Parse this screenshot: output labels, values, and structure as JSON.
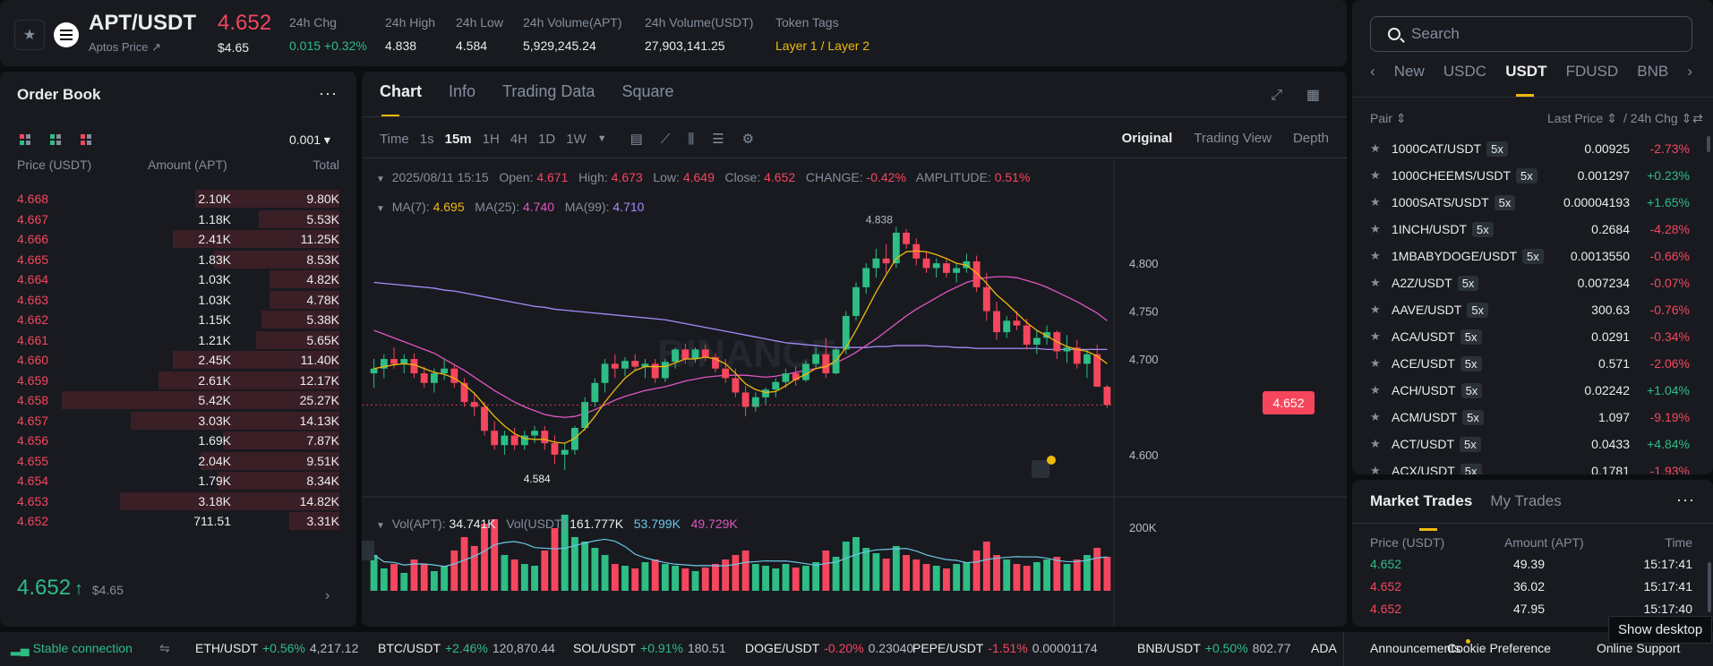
{
  "header": {
    "symbol": "APT/USDT",
    "subname": "Aptos Price ↗",
    "last_price": "4.652",
    "last_price_usd": "$4.65",
    "stats": [
      {
        "label": "24h Chg",
        "value": "0.015 +0.32%",
        "color": "#2ebd85"
      },
      {
        "label": "24h High",
        "value": "4.838",
        "color": "#eaecef"
      },
      {
        "label": "24h Low",
        "value": "4.584",
        "color": "#eaecef"
      },
      {
        "label": "24h Volume(APT)",
        "value": "5,929,245.24",
        "color": "#eaecef"
      },
      {
        "label": "24h Volume(USDT)",
        "value": "27,903,141.25",
        "color": "#eaecef"
      },
      {
        "label": "Token Tags",
        "value": "Layer 1 / Layer 2",
        "color": "#f0b90b"
      }
    ]
  },
  "orderbook": {
    "title": "Order Book",
    "more": "···",
    "tick": "0.001 ▾",
    "columns": [
      "Price (USDT)",
      "Amount (APT)",
      "Total"
    ],
    "asks": [
      {
        "price": "4.668",
        "amount": "2.10K",
        "total": "9.80K",
        "depth": 0.52
      },
      {
        "price": "4.667",
        "amount": "1.18K",
        "total": "5.53K",
        "depth": 0.29
      },
      {
        "price": "4.666",
        "amount": "2.41K",
        "total": "11.25K",
        "depth": 0.6
      },
      {
        "price": "4.665",
        "amount": "1.83K",
        "total": "8.53K",
        "depth": 0.45
      },
      {
        "price": "4.664",
        "amount": "1.03K",
        "total": "4.82K",
        "depth": 0.25
      },
      {
        "price": "4.663",
        "amount": "1.03K",
        "total": "4.78K",
        "depth": 0.25
      },
      {
        "price": "4.662",
        "amount": "1.15K",
        "total": "5.38K",
        "depth": 0.28
      },
      {
        "price": "4.661",
        "amount": "1.21K",
        "total": "5.65K",
        "depth": 0.3
      },
      {
        "price": "4.660",
        "amount": "2.45K",
        "total": "11.40K",
        "depth": 0.6
      },
      {
        "price": "4.659",
        "amount": "2.61K",
        "total": "12.17K",
        "depth": 0.65
      },
      {
        "price": "4.658",
        "amount": "5.42K",
        "total": "25.27K",
        "depth": 1.0
      },
      {
        "price": "4.657",
        "amount": "3.03K",
        "total": "14.13K",
        "depth": 0.75
      },
      {
        "price": "4.656",
        "amount": "1.69K",
        "total": "7.87K",
        "depth": 0.42
      },
      {
        "price": "4.655",
        "amount": "2.04K",
        "total": "9.51K",
        "depth": 0.5
      },
      {
        "price": "4.654",
        "amount": "1.79K",
        "total": "8.34K",
        "depth": 0.44
      },
      {
        "price": "4.653",
        "amount": "3.18K",
        "total": "14.82K",
        "depth": 0.79
      },
      {
        "price": "4.652",
        "amount": "711.51",
        "total": "3.31K",
        "depth": 0.18
      }
    ],
    "mid_price": "4.652",
    "mid_arrow": "↑",
    "mid_usd": "$4.65"
  },
  "chart": {
    "tabs": [
      "Chart",
      "Info",
      "Trading Data",
      "Square"
    ],
    "intervals": [
      "Time",
      "1s",
      "15m",
      "1H",
      "4H",
      "1D",
      "1W"
    ],
    "active_interval": "15m",
    "views": [
      "Original",
      "Trading View",
      "Depth"
    ],
    "ohlc": {
      "date": "2025/08/11 15:15",
      "open_label": "Open:",
      "open": "4.671",
      "high_label": "High:",
      "high": "4.673",
      "low_label": "Low:",
      "low": "4.649",
      "close_label": "Close:",
      "close": "4.652",
      "change_label": "CHANGE:",
      "change": "-0.42%",
      "amp_label": "AMPLITUDE:",
      "amp": "0.51%"
    },
    "ma": {
      "ma7_label": "MA(7):",
      "ma7": "4.695",
      "ma25_label": "MA(25):",
      "ma25": "4.740",
      "ma99_label": "MA(99):",
      "ma99": "4.710"
    },
    "vol": {
      "apt_label": "Vol(APT):",
      "apt": "34.741K",
      "usdt_label": "Vol(USDT)",
      "usdt": "161.777K",
      "v1": "53.799K",
      "v2": "49.729K"
    },
    "price_tag": "4.652",
    "high_marker": "4.838",
    "low_marker": "4.584",
    "watermark": "BINANCE"
  },
  "chart_data": {
    "type": "candlestick",
    "title": "",
    "y_axis_ticks": [
      "4.800",
      "4.750",
      "4.700",
      "4.600"
    ],
    "vol_axis_ticks": [
      "200K"
    ],
    "ylim": [
      4.57,
      4.86
    ],
    "candles": [
      [
        4.685,
        4.7,
        4.67,
        4.69
      ],
      [
        4.69,
        4.705,
        4.68,
        4.7
      ],
      [
        4.7,
        4.712,
        4.69,
        4.695
      ],
      [
        4.695,
        4.705,
        4.685,
        4.7
      ],
      [
        4.7,
        4.706,
        4.68,
        4.685
      ],
      [
        4.685,
        4.692,
        4.67,
        4.675
      ],
      [
        4.675,
        4.69,
        4.665,
        4.685
      ],
      [
        4.685,
        4.7,
        4.678,
        4.69
      ],
      [
        4.69,
        4.695,
        4.67,
        4.675
      ],
      [
        4.675,
        4.68,
        4.65,
        4.655
      ],
      [
        4.655,
        4.665,
        4.64,
        4.65
      ],
      [
        4.65,
        4.655,
        4.62,
        4.625
      ],
      [
        4.625,
        4.635,
        4.605,
        4.61
      ],
      [
        4.61,
        4.625,
        4.6,
        4.62
      ],
      [
        4.62,
        4.628,
        4.605,
        4.61
      ],
      [
        4.61,
        4.625,
        4.605,
        4.62
      ],
      [
        4.62,
        4.63,
        4.612,
        4.625
      ],
      [
        4.625,
        4.63,
        4.605,
        4.612
      ],
      [
        4.612,
        4.62,
        4.59,
        4.6
      ],
      [
        4.6,
        4.612,
        4.584,
        4.605
      ],
      [
        4.605,
        4.63,
        4.6,
        4.628
      ],
      [
        4.628,
        4.66,
        4.625,
        4.655
      ],
      [
        4.655,
        4.68,
        4.65,
        4.675
      ],
      [
        4.675,
        4.7,
        4.665,
        4.695
      ],
      [
        4.695,
        4.705,
        4.68,
        4.69
      ],
      [
        4.69,
        4.702,
        4.682,
        4.698
      ],
      [
        4.698,
        4.705,
        4.688,
        4.692
      ],
      [
        4.692,
        4.7,
        4.68,
        4.695
      ],
      [
        4.695,
        4.7,
        4.675,
        4.68
      ],
      [
        4.68,
        4.7,
        4.676,
        4.697
      ],
      [
        4.697,
        4.712,
        4.69,
        4.71
      ],
      [
        4.71,
        4.716,
        4.695,
        4.7
      ],
      [
        4.7,
        4.712,
        4.696,
        4.71
      ],
      [
        4.71,
        4.715,
        4.698,
        4.702
      ],
      [
        4.702,
        4.706,
        4.686,
        4.69
      ],
      [
        4.69,
        4.7,
        4.675,
        4.68
      ],
      [
        4.68,
        4.69,
        4.66,
        4.665
      ],
      [
        4.665,
        4.672,
        4.64,
        4.65
      ],
      [
        4.65,
        4.665,
        4.645,
        4.66
      ],
      [
        4.66,
        4.67,
        4.652,
        4.668
      ],
      [
        4.668,
        4.68,
        4.66,
        4.676
      ],
      [
        4.676,
        4.69,
        4.67,
        4.685
      ],
      [
        4.685,
        4.692,
        4.672,
        4.678
      ],
      [
        4.678,
        4.698,
        4.676,
        4.695
      ],
      [
        4.695,
        4.712,
        4.69,
        4.705
      ],
      [
        4.705,
        4.722,
        4.68,
        4.685
      ],
      [
        4.685,
        4.712,
        4.684,
        4.71
      ],
      [
        4.71,
        4.75,
        4.705,
        4.745
      ],
      [
        4.745,
        4.78,
        4.74,
        4.775
      ],
      [
        4.775,
        4.8,
        4.768,
        4.795
      ],
      [
        4.795,
        4.815,
        4.785,
        4.805
      ],
      [
        4.805,
        4.82,
        4.79,
        4.8
      ],
      [
        4.8,
        4.838,
        4.795,
        4.832
      ],
      [
        4.832,
        4.836,
        4.815,
        4.82
      ],
      [
        4.82,
        4.826,
        4.798,
        4.805
      ],
      [
        4.805,
        4.812,
        4.79,
        4.795
      ],
      [
        4.795,
        4.805,
        4.785,
        4.8
      ],
      [
        4.8,
        4.806,
        4.785,
        4.79
      ],
      [
        4.79,
        4.8,
        4.78,
        4.795
      ],
      [
        4.795,
        4.81,
        4.79,
        4.802
      ],
      [
        4.802,
        4.808,
        4.77,
        4.775
      ],
      [
        4.775,
        4.79,
        4.74,
        4.75
      ],
      [
        4.75,
        4.76,
        4.72,
        4.728
      ],
      [
        4.728,
        4.745,
        4.722,
        4.74
      ],
      [
        4.74,
        4.75,
        4.73,
        4.735
      ],
      [
        4.735,
        4.742,
        4.71,
        4.715
      ],
      [
        4.715,
        4.73,
        4.705,
        4.722
      ],
      [
        4.722,
        4.735,
        4.715,
        4.728
      ],
      [
        4.728,
        4.73,
        4.7,
        4.708
      ],
      [
        4.708,
        4.725,
        4.696,
        4.712
      ],
      [
        4.712,
        4.72,
        4.69,
        4.695
      ],
      [
        4.695,
        4.71,
        4.68,
        4.705
      ],
      [
        4.705,
        4.715,
        4.671,
        4.671
      ],
      [
        4.671,
        4.673,
        4.649,
        4.652
      ]
    ],
    "ma7": [
      4.69,
      4.692,
      4.694,
      4.695,
      4.694,
      4.69,
      4.686,
      4.684,
      4.68,
      4.673,
      4.664,
      4.652,
      4.64,
      4.63,
      4.622,
      4.617,
      4.616,
      4.616,
      4.613,
      4.612,
      4.617,
      4.627,
      4.64,
      4.655,
      4.668,
      4.68,
      4.688,
      4.692,
      4.692,
      4.692,
      4.696,
      4.7,
      4.7,
      4.702,
      4.7,
      4.695,
      4.685,
      4.674,
      4.668,
      4.665,
      4.666,
      4.672,
      4.679,
      4.684,
      4.69,
      4.692,
      4.698,
      4.712,
      4.73,
      4.75,
      4.77,
      4.788,
      4.805,
      4.812,
      4.813,
      4.812,
      4.809,
      4.805,
      4.8,
      4.798,
      4.79,
      4.779,
      4.767,
      4.758,
      4.748,
      4.738,
      4.73,
      4.724,
      4.718,
      4.713,
      4.71,
      4.708,
      4.703,
      4.695
    ],
    "ma25": [
      4.73,
      4.726,
      4.722,
      4.718,
      4.714,
      4.71,
      4.706,
      4.7,
      4.694,
      4.688,
      4.681,
      4.674,
      4.667,
      4.661,
      4.655,
      4.65,
      4.646,
      4.642,
      4.64,
      4.639,
      4.64,
      4.643,
      4.647,
      4.652,
      4.657,
      4.661,
      4.664,
      4.667,
      4.669,
      4.671,
      4.674,
      4.677,
      4.679,
      4.681,
      4.682,
      4.683,
      4.683,
      4.683,
      4.682,
      4.681,
      4.682,
      4.684,
      4.686,
      4.688,
      4.69,
      4.693,
      4.696,
      4.701,
      4.707,
      4.714,
      4.721,
      4.729,
      4.737,
      4.745,
      4.752,
      4.758,
      4.764,
      4.77,
      4.775,
      4.78,
      4.783,
      4.785,
      4.786,
      4.786,
      4.785,
      4.782,
      4.779,
      4.775,
      4.77,
      4.765,
      4.76,
      4.754,
      4.748,
      4.74
    ],
    "ma99": [
      4.78,
      4.779,
      4.778,
      4.777,
      4.776,
      4.775,
      4.774,
      4.772,
      4.771,
      4.769,
      4.767,
      4.765,
      4.763,
      4.761,
      4.759,
      4.757,
      4.755,
      4.754,
      4.752,
      4.751,
      4.75,
      4.749,
      4.748,
      4.747,
      4.746,
      4.745,
      4.744,
      4.743,
      4.742,
      4.741,
      4.739,
      4.737,
      4.735,
      4.733,
      4.731,
      4.729,
      4.727,
      4.725,
      4.723,
      4.721,
      4.719,
      4.717,
      4.716,
      4.715,
      4.714,
      4.713,
      4.712,
      4.712,
      4.712,
      4.712,
      4.713,
      4.713,
      4.714,
      4.714,
      4.714,
      4.714,
      4.713,
      4.713,
      4.712,
      4.712,
      4.711,
      4.711,
      4.711,
      4.711,
      4.711,
      4.711,
      4.711,
      4.71,
      4.71,
      4.71,
      4.71,
      4.71,
      4.71,
      4.71
    ],
    "volumes": [
      40,
      25,
      30,
      20,
      35,
      30,
      22,
      28,
      45,
      60,
      50,
      75,
      80,
      40,
      35,
      30,
      28,
      45,
      70,
      85,
      60,
      55,
      48,
      40,
      30,
      28,
      25,
      32,
      35,
      30,
      28,
      25,
      22,
      26,
      30,
      35,
      40,
      45,
      30,
      28,
      25,
      30,
      26,
      28,
      32,
      45,
      38,
      55,
      60,
      48,
      42,
      36,
      50,
      40,
      35,
      30,
      28,
      25,
      30,
      32,
      45,
      55,
      40,
      35,
      30,
      28,
      32,
      35,
      38,
      30,
      35,
      40,
      48,
      38
    ]
  },
  "markets": {
    "search_placeholder": "Search",
    "tabs": [
      "New",
      "USDC",
      "USDT",
      "FDUSD",
      "BNB"
    ],
    "active_tab": "USDT",
    "head": {
      "pair": "Pair ⇕",
      "last": "Last Price ⇕",
      "chg": "/ 24h Chg ⇕"
    },
    "rows": [
      {
        "pair": "1000CAT/USDT",
        "lev": "5x",
        "price": "0.00925",
        "chg": "-2.73%",
        "up": false
      },
      {
        "pair": "1000CHEEMS/USDT",
        "lev": "5x",
        "price": "0.001297",
        "chg": "+0.23%",
        "up": true
      },
      {
        "pair": "1000SATS/USDT",
        "lev": "5x",
        "price": "0.00004193",
        "chg": "+1.65%",
        "up": true
      },
      {
        "pair": "1INCH/USDT",
        "lev": "5x",
        "price": "0.2684",
        "chg": "-4.28%",
        "up": false
      },
      {
        "pair": "1MBABYDOGE/USDT",
        "lev": "5x",
        "price": "0.0013550",
        "chg": "-0.66%",
        "up": false
      },
      {
        "pair": "A2Z/USDT",
        "lev": "5x",
        "price": "0.007234",
        "chg": "-0.07%",
        "up": false
      },
      {
        "pair": "AAVE/USDT",
        "lev": "5x",
        "price": "300.63",
        "chg": "-0.76%",
        "up": false
      },
      {
        "pair": "ACA/USDT",
        "lev": "5x",
        "price": "0.0291",
        "chg": "-0.34%",
        "up": false
      },
      {
        "pair": "ACE/USDT",
        "lev": "5x",
        "price": "0.571",
        "chg": "-2.06%",
        "up": false
      },
      {
        "pair": "ACH/USDT",
        "lev": "5x",
        "price": "0.02242",
        "chg": "+1.04%",
        "up": true
      },
      {
        "pair": "ACM/USDT",
        "lev": "5x",
        "price": "1.097",
        "chg": "-9.19%",
        "up": false
      },
      {
        "pair": "ACT/USDT",
        "lev": "5x",
        "price": "0.0433",
        "chg": "+4.84%",
        "up": true
      },
      {
        "pair": "ACX/USDT",
        "lev": "5x",
        "price": "0.1781",
        "chg": "-1.93%",
        "up": false
      }
    ]
  },
  "trades": {
    "tabs": [
      "Market Trades",
      "My Trades"
    ],
    "columns": [
      "Price (USDT)",
      "Amount (APT)",
      "Time"
    ],
    "rows": [
      {
        "price": "4.652",
        "amount": "49.39",
        "time": "15:17:41",
        "up": true
      },
      {
        "price": "4.652",
        "amount": "36.02",
        "time": "15:17:41",
        "up": false
      },
      {
        "price": "4.652",
        "amount": "47.95",
        "time": "15:17:40",
        "up": false
      }
    ]
  },
  "footer": {
    "connection": "Stable connection",
    "tickers": [
      {
        "pair": "ETH/USDT",
        "chg": "+0.56%",
        "price": "4,217.12",
        "up": true
      },
      {
        "pair": "BTC/USDT",
        "chg": "+2.46%",
        "price": "120,870.44",
        "up": true
      },
      {
        "pair": "SOL/USDT",
        "chg": "+0.91%",
        "price": "180.51",
        "up": true
      },
      {
        "pair": "DOGE/USDT",
        "chg": "-0.20%",
        "price": "0.23040",
        "up": false
      },
      {
        "pair": "PEPE/USDT",
        "chg": "-1.51%",
        "price": "0.00001174",
        "up": false
      },
      {
        "pair": "BNB/USDT",
        "chg": "+0.50%",
        "price": "802.77",
        "up": true
      }
    ],
    "trailing": "ADA",
    "links": [
      "Announcements",
      "Cookie Preference",
      "Online Support"
    ],
    "tooltip": "Show desktop"
  }
}
